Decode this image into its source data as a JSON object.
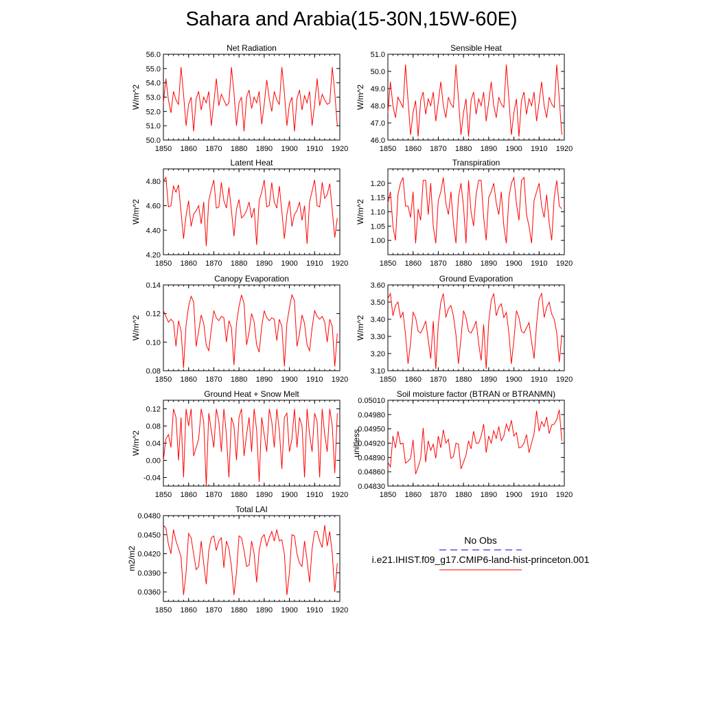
{
  "title": "Sahara and Arabia(15-30N,15W-60E)",
  "legend": {
    "obs_label": "No Obs",
    "obs_color": "#0000cc",
    "model_label": "i.e21.IHIST.f09_g17.CMIP6-land-hist-princeton.001",
    "model_color": "#ff0000"
  },
  "chart_data": [
    {
      "type": "line",
      "title": "Net Radiation",
      "ylabel": "W/m^2",
      "xlim": [
        1850,
        1920
      ],
      "ylim": [
        50.0,
        56.0
      ],
      "xticks": [
        "1850",
        "1860",
        "1870",
        "1880",
        "1890",
        "1900",
        "1910",
        "1920"
      ],
      "yticks": [
        "50.0",
        "51.0",
        "52.0",
        "53.0",
        "54.0",
        "55.0",
        "56.0"
      ],
      "x_start": 1850,
      "series": [
        {
          "values": [
            52.6,
            54.3,
            52.8,
            51.9,
            53.4,
            52.8,
            52.5,
            55.1,
            53.2,
            51.0,
            52.5,
            53.0,
            50.6,
            52.9,
            53.4,
            52.1,
            53.0,
            52.6,
            53.4,
            51.0,
            52.6,
            54.3,
            52.4,
            53.2,
            52.8,
            52.4,
            52.6,
            55.1,
            53.3,
            51.0,
            52.6,
            53.0,
            50.6,
            53.0,
            53.5,
            52.2,
            53.0,
            52.6,
            53.4,
            51.1,
            52.5,
            54.2,
            52.9,
            52.0,
            53.4,
            52.8,
            52.5,
            55.1,
            53.3,
            51.0,
            52.5,
            53.0,
            50.6,
            52.9,
            53.5,
            52.1,
            53.1,
            52.6,
            53.4,
            51.0,
            52.5,
            54.3,
            52.4,
            53.2,
            52.8,
            52.5,
            52.6,
            55.1,
            53.3,
            51.0
          ]
        }
      ]
    },
    {
      "type": "line",
      "title": "Sensible Heat",
      "ylabel": "W/m^2",
      "xlim": [
        1850,
        1920
      ],
      "ylim": [
        46.0,
        51.0
      ],
      "xticks": [
        "1850",
        "1860",
        "1870",
        "1880",
        "1890",
        "1900",
        "1910",
        "1920"
      ],
      "yticks": [
        "46.0",
        "47.0",
        "48.0",
        "49.0",
        "50.0",
        "51.0"
      ],
      "x_start": 1850,
      "series": [
        {
          "values": [
            47.6,
            49.4,
            48.0,
            47.3,
            48.5,
            48.2,
            47.9,
            50.4,
            48.3,
            46.3,
            47.6,
            48.3,
            46.2,
            48.3,
            48.8,
            47.5,
            48.4,
            48.0,
            48.8,
            47.1,
            48.2,
            49.4,
            48.0,
            47.3,
            48.5,
            48.1,
            47.9,
            50.4,
            48.4,
            46.3,
            47.6,
            48.4,
            46.2,
            48.3,
            48.8,
            47.5,
            48.4,
            48.0,
            48.8,
            47.1,
            48.2,
            49.4,
            48.0,
            47.3,
            48.5,
            48.1,
            47.9,
            50.4,
            48.4,
            46.3,
            47.6,
            48.4,
            46.2,
            48.3,
            48.8,
            47.5,
            48.4,
            48.0,
            48.8,
            47.1,
            48.2,
            49.4,
            48.0,
            47.3,
            48.5,
            48.1,
            47.9,
            50.4,
            48.4,
            46.3
          ]
        }
      ]
    },
    {
      "type": "line",
      "title": "Latent Heat",
      "ylabel": "W/m^2",
      "xlim": [
        1850,
        1920
      ],
      "ylim": [
        4.2,
        4.9
      ],
      "xticks": [
        "1850",
        "1860",
        "1870",
        "1880",
        "1890",
        "1900",
        "1910",
        "1920"
      ],
      "yticks": [
        "4.20",
        "4.40",
        "4.60",
        "4.80"
      ],
      "ytick_values": [
        4.2,
        4.4,
        4.6,
        4.8
      ],
      "x_start": 1850,
      "series": [
        {
          "values": [
            4.8,
            4.83,
            4.59,
            4.6,
            4.76,
            4.71,
            4.77,
            4.55,
            4.33,
            4.52,
            4.64,
            4.43,
            4.53,
            4.56,
            4.6,
            4.45,
            4.63,
            4.27,
            4.64,
            4.73,
            4.81,
            4.58,
            4.59,
            4.79,
            4.64,
            4.58,
            4.75,
            4.56,
            4.35,
            4.57,
            4.65,
            4.5,
            4.52,
            4.56,
            4.63,
            4.5,
            4.58,
            4.28,
            4.64,
            4.71,
            4.81,
            4.59,
            4.6,
            4.79,
            4.63,
            4.58,
            4.76,
            4.55,
            4.33,
            4.53,
            4.64,
            4.43,
            4.53,
            4.56,
            4.63,
            4.48,
            4.6,
            4.29,
            4.63,
            4.72,
            4.81,
            4.6,
            4.59,
            4.79,
            4.66,
            4.69,
            4.78,
            4.56,
            4.34,
            4.5
          ]
        }
      ]
    },
    {
      "type": "line",
      "title": "Transpiration",
      "ylabel": "W/m^2",
      "xlim": [
        1850,
        1920
      ],
      "ylim": [
        0.95,
        1.25
      ],
      "xticks": [
        "1850",
        "1860",
        "1870",
        "1880",
        "1890",
        "1900",
        "1910",
        "1920"
      ],
      "yticks": [
        "1.00",
        "1.05",
        "1.10",
        "1.15",
        "1.20"
      ],
      "ytick_values": [
        1.0,
        1.05,
        1.1,
        1.15,
        1.2
      ],
      "x_start": 1850,
      "series": [
        {
          "values": [
            1.13,
            1.17,
            1.05,
            1.0,
            1.16,
            1.2,
            1.22,
            1.12,
            1.12,
            1.08,
            1.17,
            0.99,
            1.11,
            1.07,
            1.21,
            1.21,
            1.09,
            1.2,
            1.05,
            0.99,
            1.14,
            1.17,
            1.22,
            1.13,
            1.09,
            1.17,
            1.06,
            0.99,
            1.15,
            1.2,
            1.12,
            0.99,
            1.21,
            1.1,
            1.05,
            1.16,
            1.21,
            1.21,
            1.08,
            1.0,
            1.15,
            1.17,
            1.2,
            1.13,
            1.09,
            1.17,
            1.05,
            0.99,
            1.15,
            1.2,
            1.22,
            1.13,
            1.07,
            1.21,
            1.22,
            1.09,
            1.05,
            0.99,
            1.14,
            1.17,
            1.2,
            1.12,
            1.08,
            1.16,
            1.06,
            1.0,
            1.15,
            1.21,
            1.12,
            1.11
          ]
        }
      ]
    },
    {
      "type": "line",
      "title": "Canopy Evaporation",
      "ylabel": "W/m^2",
      "xlim": [
        1850,
        1920
      ],
      "ylim": [
        0.08,
        0.14
      ],
      "xticks": [
        "1850",
        "1860",
        "1870",
        "1880",
        "1890",
        "1900",
        "1910",
        "1920"
      ],
      "yticks": [
        "0.08",
        "0.10",
        "0.12",
        "0.14"
      ],
      "ytick_values": [
        0.08,
        0.1,
        0.12,
        0.14
      ],
      "x_start": 1850,
      "series": [
        {
          "values": [
            0.122,
            0.118,
            0.114,
            0.116,
            0.114,
            0.097,
            0.115,
            0.108,
            0.082,
            0.112,
            0.125,
            0.132,
            0.128,
            0.097,
            0.108,
            0.119,
            0.113,
            0.098,
            0.094,
            0.109,
            0.122,
            0.117,
            0.115,
            0.118,
            0.117,
            0.1,
            0.115,
            0.11,
            0.084,
            0.113,
            0.125,
            0.133,
            0.127,
            0.098,
            0.107,
            0.12,
            0.114,
            0.098,
            0.093,
            0.111,
            0.122,
            0.117,
            0.115,
            0.117,
            0.116,
            0.101,
            0.116,
            0.111,
            0.083,
            0.113,
            0.124,
            0.133,
            0.129,
            0.097,
            0.106,
            0.119,
            0.113,
            0.098,
            0.094,
            0.11,
            0.122,
            0.118,
            0.116,
            0.118,
            0.114,
            0.1,
            0.116,
            0.111,
            0.083,
            0.106
          ]
        }
      ]
    },
    {
      "type": "line",
      "title": "Ground Evaporation",
      "ylabel": "W/m^2",
      "xlim": [
        1850,
        1920
      ],
      "ylim": [
        3.1,
        3.6
      ],
      "xticks": [
        "1850",
        "1860",
        "1870",
        "1880",
        "1890",
        "1900",
        "1910",
        "1920"
      ],
      "yticks": [
        "3.10",
        "3.20",
        "3.30",
        "3.40",
        "3.50",
        "3.60"
      ],
      "ytick_values": [
        3.1,
        3.2,
        3.3,
        3.4,
        3.5,
        3.6
      ],
      "x_start": 1850,
      "series": [
        {
          "values": [
            3.52,
            3.55,
            3.42,
            3.48,
            3.5,
            3.41,
            3.44,
            3.31,
            3.14,
            3.26,
            3.44,
            3.41,
            3.33,
            3.32,
            3.35,
            3.39,
            3.28,
            3.17,
            3.39,
            3.11,
            3.37,
            3.5,
            3.55,
            3.41,
            3.46,
            3.48,
            3.42,
            3.31,
            3.14,
            3.29,
            3.45,
            3.41,
            3.33,
            3.32,
            3.35,
            3.39,
            3.26,
            3.16,
            3.37,
            3.11,
            3.38,
            3.51,
            3.55,
            3.42,
            3.47,
            3.49,
            3.41,
            3.44,
            3.32,
            3.14,
            3.28,
            3.45,
            3.41,
            3.33,
            3.32,
            3.35,
            3.38,
            3.27,
            3.17,
            3.37,
            3.52,
            3.55,
            3.41,
            3.47,
            3.5,
            3.43,
            3.4,
            3.32,
            3.15,
            3.31
          ]
        }
      ]
    },
    {
      "type": "line",
      "title": "Ground Heat + Snow Melt",
      "ylabel": "W/m^2",
      "xlim": [
        1850,
        1920
      ],
      "ylim": [
        -0.06,
        0.14
      ],
      "xticks": [
        "1850",
        "1860",
        "1870",
        "1880",
        "1890",
        "1900",
        "1910",
        "1920"
      ],
      "yticks": [
        "-0.04",
        "0.00",
        "0.04",
        "0.08",
        "0.12"
      ],
      "ytick_values": [
        -0.04,
        0.0,
        0.04,
        0.08,
        0.12
      ],
      "x_start": 1850,
      "series": [
        {
          "values": [
            0.0,
            0.05,
            0.06,
            0.03,
            0.12,
            0.1,
            0.0,
            0.1,
            -0.04,
            0.12,
            0.08,
            0.12,
            0.01,
            0.03,
            0.05,
            0.12,
            0.09,
            -0.06,
            0.11,
            0.07,
            0.03,
            0.12,
            0.09,
            0.02,
            0.12,
            0.06,
            -0.04,
            0.1,
            0.08,
            0.0,
            0.1,
            0.12,
            0.01,
            0.06,
            0.1,
            0.02,
            0.12,
            0.07,
            -0.05,
            0.1,
            0.06,
            0.02,
            0.12,
            0.09,
            0.03,
            0.12,
            0.07,
            -0.02,
            0.1,
            0.11,
            0.02,
            0.05,
            0.12,
            0.03,
            0.1,
            0.08,
            -0.04,
            0.12,
            0.06,
            0.02,
            0.11,
            0.09,
            -0.04,
            0.12,
            0.06,
            0.02,
            0.12,
            0.08,
            -0.03,
            0.11
          ]
        }
      ]
    },
    {
      "type": "line",
      "title": "Soil moisture factor (BTRAN or BTRANMN)",
      "ylabel": "unitless",
      "xlim": [
        1850,
        1920
      ],
      "ylim": [
        0.0483,
        0.0501
      ],
      "xticks": [
        "1850",
        "1860",
        "1870",
        "1880",
        "1890",
        "1900",
        "1910",
        "1920"
      ],
      "yticks": [
        "0.04830",
        "0.04860",
        "0.04890",
        "0.04920",
        "0.04950",
        "0.04980",
        "0.05010"
      ],
      "ytick_values": [
        0.0483,
        0.0486,
        0.0489,
        0.0492,
        0.0495,
        0.0498,
        0.0501
      ],
      "x_start": 1850,
      "series": [
        {
          "values": [
            0.0488,
            0.0487,
            0.04935,
            0.0491,
            0.04945,
            0.04918,
            0.0492,
            0.04878,
            0.04882,
            0.04888,
            0.04927,
            0.04855,
            0.0487,
            0.04888,
            0.04952,
            0.0488,
            0.04925,
            0.04905,
            0.04918,
            0.04888,
            0.04935,
            0.0491,
            0.04948,
            0.0492,
            0.04928,
            0.04888,
            0.04892,
            0.0492,
            0.04918,
            0.04866,
            0.0488,
            0.04895,
            0.04925,
            0.04908,
            0.04945,
            0.0492,
            0.0492,
            0.04935,
            0.0496,
            0.049,
            0.04935,
            0.0492,
            0.04946,
            0.0493,
            0.04955,
            0.04925,
            0.04935,
            0.0496,
            0.04945,
            0.04968,
            0.04935,
            0.04942,
            0.0491,
            0.04912,
            0.0492,
            0.04938,
            0.049,
            0.0492,
            0.0494,
            0.04988,
            0.04945,
            0.04965,
            0.04955,
            0.04975,
            0.0494,
            0.04958,
            0.0496,
            0.0497,
            0.0499,
            0.04925
          ]
        }
      ]
    },
    {
      "type": "line",
      "title": "Total LAI",
      "ylabel": "m2/m2",
      "xlim": [
        1850,
        1920
      ],
      "ylim": [
        0.0345,
        0.048
      ],
      "xticks": [
        "1850",
        "1860",
        "1870",
        "1880",
        "1890",
        "1900",
        "1910",
        "1920"
      ],
      "yticks": [
        "0.0360",
        "0.0390",
        "0.0420",
        "0.0450",
        "0.0480"
      ],
      "ytick_values": [
        0.036,
        0.039,
        0.042,
        0.045,
        0.048
      ],
      "x_start": 1850,
      "series": [
        {
          "values": [
            0.0465,
            0.046,
            0.0435,
            0.042,
            0.0458,
            0.044,
            0.0428,
            0.0415,
            0.0355,
            0.039,
            0.0452,
            0.0445,
            0.042,
            0.0395,
            0.04,
            0.044,
            0.0405,
            0.0372,
            0.0425,
            0.0445,
            0.0448,
            0.0425,
            0.044,
            0.0445,
            0.0398,
            0.044,
            0.0428,
            0.04,
            0.0355,
            0.039,
            0.0448,
            0.0445,
            0.0425,
            0.04,
            0.0402,
            0.044,
            0.042,
            0.0375,
            0.0425,
            0.0445,
            0.045,
            0.0432,
            0.0445,
            0.0455,
            0.044,
            0.0458,
            0.044,
            0.0442,
            0.042,
            0.0355,
            0.039,
            0.045,
            0.0448,
            0.042,
            0.0405,
            0.04,
            0.044,
            0.041,
            0.0375,
            0.0428,
            0.0455,
            0.0455,
            0.044,
            0.043,
            0.0465,
            0.0432,
            0.0455,
            0.042,
            0.036,
            0.0405
          ]
        }
      ]
    }
  ]
}
